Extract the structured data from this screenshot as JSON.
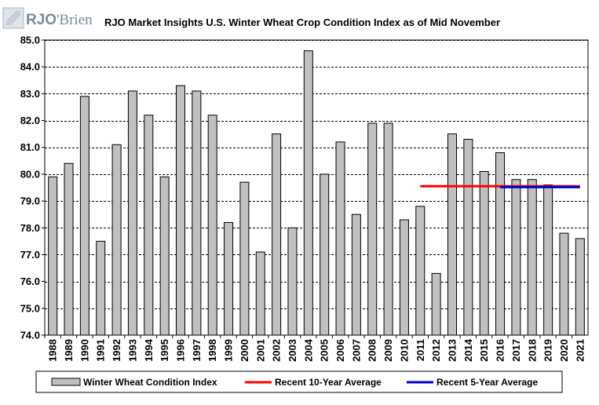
{
  "logo": {
    "text_main": "RJO",
    "text_secondary": "'Brien"
  },
  "chart_data": {
    "type": "bar",
    "title": "RJO Market Insights U.S. Winter Wheat Crop Condition Index as of Mid November",
    "xlabel": "",
    "ylabel": "",
    "ylim": [
      74.0,
      85.0
    ],
    "ytick_step": 1.0,
    "ytick_labels": [
      "74.0",
      "75.0",
      "76.0",
      "77.0",
      "78.0",
      "79.0",
      "80.0",
      "81.0",
      "82.0",
      "83.0",
      "84.0",
      "85.0"
    ],
    "grid": "horizontal dashed",
    "legend_position": "bottom",
    "categories": [
      "1988",
      "1989",
      "1990",
      "1991",
      "1992",
      "1993",
      "1994",
      "1995",
      "1996",
      "1997",
      "1998",
      "1999",
      "2000",
      "2001",
      "2002",
      "2003",
      "2004",
      "2005",
      "2006",
      "2007",
      "2008",
      "2009",
      "2010",
      "2011",
      "2012",
      "2013",
      "2014",
      "2015",
      "2016",
      "2017",
      "2018",
      "2019",
      "2020",
      "2021"
    ],
    "series": [
      {
        "name": "Winter Wheat Condition Index",
        "kind": "bar",
        "color": "#c0c0c0",
        "values": [
          79.9,
          80.4,
          82.9,
          77.5,
          81.1,
          83.1,
          82.2,
          79.9,
          83.3,
          83.1,
          82.2,
          78.2,
          79.7,
          77.1,
          81.5,
          78.0,
          84.6,
          80.0,
          81.2,
          78.5,
          81.9,
          81.9,
          78.3,
          78.8,
          76.3,
          81.5,
          81.3,
          80.1,
          80.8,
          79.8,
          79.8,
          79.6,
          77.8,
          77.6
        ]
      },
      {
        "name": "Recent 10-Year Average",
        "kind": "line",
        "color": "#ff0000",
        "x_start": "2011",
        "x_end": "2021",
        "value": 79.55
      },
      {
        "name": "Recent 5-Year Average",
        "kind": "line",
        "color": "#0000cc",
        "x_start": "2016",
        "x_end": "2021",
        "value": 79.52
      }
    ]
  }
}
